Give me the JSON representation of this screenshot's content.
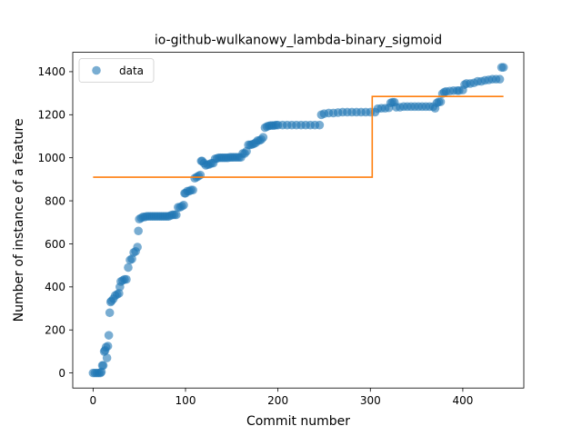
{
  "chart_data": {
    "type": "scatter",
    "title": "io-github-wulkanowy_lambda-binary_sigmoid",
    "xlabel": "Commit number",
    "ylabel": "Number of instance of a feature",
    "xlim": [
      -22,
      466
    ],
    "ylim": [
      -70,
      1490
    ],
    "xticks": [
      0,
      100,
      200,
      300,
      400
    ],
    "yticks": [
      0,
      200,
      400,
      600,
      800,
      1000,
      1200,
      1400
    ],
    "grid": false,
    "legend": {
      "placement": "top-left",
      "entries": [
        "data"
      ]
    },
    "colors": {
      "data": "#1f77b4",
      "fit": "#ff7f0e"
    },
    "series": [
      {
        "name": "data",
        "kind": "scatter",
        "points": [
          [
            0,
            0
          ],
          [
            2,
            0
          ],
          [
            4,
            0
          ],
          [
            6,
            0
          ],
          [
            8,
            0
          ],
          [
            9,
            5
          ],
          [
            10,
            35
          ],
          [
            11,
            35
          ],
          [
            12,
            100
          ],
          [
            13,
            105
          ],
          [
            14,
            120
          ],
          [
            15,
            70
          ],
          [
            16,
            125
          ],
          [
            17,
            175
          ],
          [
            18,
            280
          ],
          [
            19,
            330
          ],
          [
            20,
            335
          ],
          [
            22,
            345
          ],
          [
            24,
            360
          ],
          [
            26,
            365
          ],
          [
            28,
            370
          ],
          [
            29,
            400
          ],
          [
            30,
            425
          ],
          [
            32,
            430
          ],
          [
            34,
            435
          ],
          [
            36,
            435
          ],
          [
            38,
            490
          ],
          [
            40,
            525
          ],
          [
            42,
            530
          ],
          [
            44,
            560
          ],
          [
            46,
            565
          ],
          [
            48,
            585
          ],
          [
            49,
            660
          ],
          [
            50,
            715
          ],
          [
            52,
            720
          ],
          [
            54,
            725
          ],
          [
            56,
            725
          ],
          [
            58,
            728
          ],
          [
            60,
            728
          ],
          [
            62,
            728
          ],
          [
            64,
            728
          ],
          [
            66,
            728
          ],
          [
            68,
            728
          ],
          [
            70,
            728
          ],
          [
            72,
            728
          ],
          [
            74,
            728
          ],
          [
            76,
            728
          ],
          [
            78,
            728
          ],
          [
            80,
            728
          ],
          [
            82,
            728
          ],
          [
            84,
            732
          ],
          [
            86,
            735
          ],
          [
            88,
            735
          ],
          [
            90,
            735
          ],
          [
            92,
            770
          ],
          [
            94,
            770
          ],
          [
            96,
            775
          ],
          [
            98,
            780
          ],
          [
            99,
            835
          ],
          [
            100,
            835
          ],
          [
            102,
            845
          ],
          [
            104,
            845
          ],
          [
            106,
            850
          ],
          [
            108,
            850
          ],
          [
            110,
            905
          ],
          [
            112,
            910
          ],
          [
            114,
            915
          ],
          [
            116,
            920
          ],
          [
            117,
            985
          ],
          [
            118,
            985
          ],
          [
            120,
            975
          ],
          [
            122,
            965
          ],
          [
            124,
            968
          ],
          [
            126,
            970
          ],
          [
            128,
            975
          ],
          [
            130,
            975
          ],
          [
            132,
            995
          ],
          [
            134,
            997
          ],
          [
            136,
            1000
          ],
          [
            138,
            1000
          ],
          [
            140,
            1000
          ],
          [
            142,
            1000
          ],
          [
            144,
            1000
          ],
          [
            146,
            1000
          ],
          [
            148,
            1002
          ],
          [
            150,
            1002
          ],
          [
            152,
            1002
          ],
          [
            154,
            1002
          ],
          [
            156,
            1002
          ],
          [
            158,
            1002
          ],
          [
            160,
            1002
          ],
          [
            162,
            1020
          ],
          [
            164,
            1020
          ],
          [
            166,
            1030
          ],
          [
            168,
            1060
          ],
          [
            170,
            1060
          ],
          [
            172,
            1062
          ],
          [
            174,
            1065
          ],
          [
            176,
            1070
          ],
          [
            178,
            1080
          ],
          [
            180,
            1080
          ],
          [
            182,
            1085
          ],
          [
            184,
            1095
          ],
          [
            186,
            1140
          ],
          [
            188,
            1145
          ],
          [
            190,
            1148
          ],
          [
            192,
            1150
          ],
          [
            194,
            1150
          ],
          [
            196,
            1150
          ],
          [
            198,
            1152
          ],
          [
            200,
            1152
          ],
          [
            205,
            1152
          ],
          [
            210,
            1152
          ],
          [
            215,
            1152
          ],
          [
            220,
            1152
          ],
          [
            225,
            1152
          ],
          [
            230,
            1152
          ],
          [
            235,
            1152
          ],
          [
            240,
            1152
          ],
          [
            245,
            1152
          ],
          [
            247,
            1200
          ],
          [
            250,
            1205
          ],
          [
            255,
            1208
          ],
          [
            260,
            1208
          ],
          [
            265,
            1210
          ],
          [
            270,
            1212
          ],
          [
            275,
            1212
          ],
          [
            280,
            1212
          ],
          [
            285,
            1212
          ],
          [
            290,
            1212
          ],
          [
            295,
            1212
          ],
          [
            300,
            1212
          ],
          [
            305,
            1212
          ],
          [
            308,
            1228
          ],
          [
            312,
            1230
          ],
          [
            316,
            1230
          ],
          [
            320,
            1232
          ],
          [
            322,
            1255
          ],
          [
            324,
            1258
          ],
          [
            326,
            1258
          ],
          [
            328,
            1235
          ],
          [
            332,
            1235
          ],
          [
            336,
            1238
          ],
          [
            340,
            1238
          ],
          [
            344,
            1238
          ],
          [
            348,
            1238
          ],
          [
            352,
            1238
          ],
          [
            356,
            1238
          ],
          [
            360,
            1238
          ],
          [
            364,
            1238
          ],
          [
            368,
            1238
          ],
          [
            370,
            1230
          ],
          [
            372,
            1255
          ],
          [
            374,
            1260
          ],
          [
            376,
            1260
          ],
          [
            378,
            1298
          ],
          [
            380,
            1305
          ],
          [
            382,
            1308
          ],
          [
            386,
            1310
          ],
          [
            390,
            1312
          ],
          [
            394,
            1312
          ],
          [
            396,
            1312
          ],
          [
            400,
            1315
          ],
          [
            402,
            1340
          ],
          [
            404,
            1345
          ],
          [
            408,
            1345
          ],
          [
            412,
            1348
          ],
          [
            416,
            1355
          ],
          [
            420,
            1355
          ],
          [
            424,
            1360
          ],
          [
            428,
            1362
          ],
          [
            432,
            1365
          ],
          [
            436,
            1365
          ],
          [
            440,
            1365
          ],
          [
            442,
            1420
          ],
          [
            444,
            1420
          ]
        ]
      },
      {
        "name": "",
        "kind": "step-line",
        "points": [
          [
            0,
            910
          ],
          [
            302,
            910
          ],
          [
            302,
            1285
          ],
          [
            444,
            1285
          ]
        ]
      }
    ]
  }
}
